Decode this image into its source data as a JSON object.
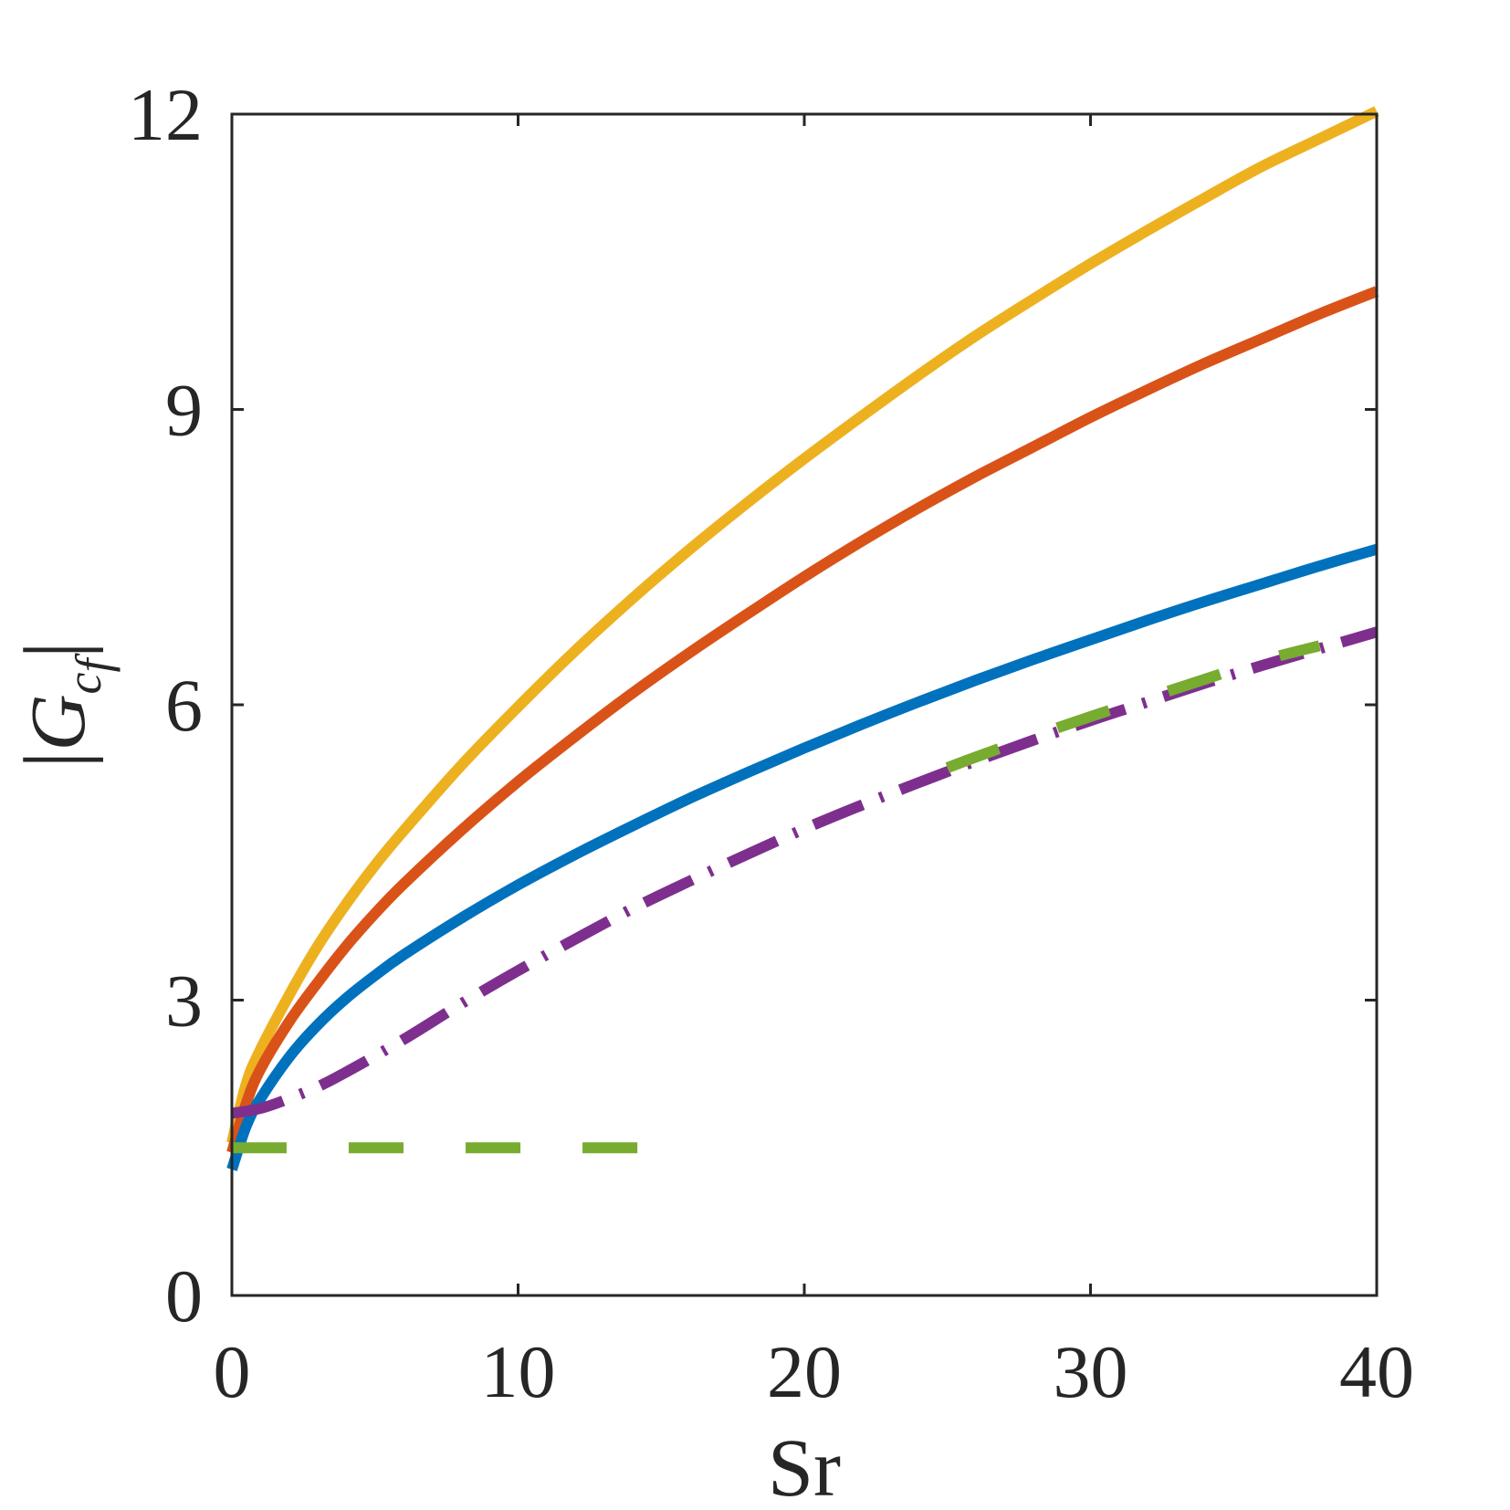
{
  "chart_data": {
    "type": "line",
    "title": "",
    "xlabel": "Sr",
    "ylabel": {
      "bar_left": "|",
      "main": "G",
      "subscript": "c",
      "subsub": "f",
      "bar_right": "|"
    },
    "xlim": [
      0,
      40
    ],
    "ylim": [
      0,
      12
    ],
    "xticks": [
      0,
      10,
      20,
      30,
      40
    ],
    "yticks": [
      0,
      3,
      6,
      9,
      12
    ],
    "xtick_labels": [
      "0",
      "10",
      "20",
      "30",
      "40"
    ],
    "ytick_labels": [
      "0",
      "3",
      "6",
      "9",
      "12"
    ],
    "grid": false,
    "legend": "none",
    "series": [
      {
        "color": "#EDB120",
        "style": "solid",
        "x": [
          0,
          0.5,
          1,
          2,
          3,
          4,
          5,
          6,
          8,
          10,
          12,
          14,
          16,
          18,
          20,
          22,
          24,
          26,
          28,
          30,
          32,
          34,
          36,
          38,
          40
        ],
        "y": [
          1.55,
          2.15,
          2.5,
          3.05,
          3.55,
          3.98,
          4.37,
          4.72,
          5.38,
          5.98,
          6.55,
          7.08,
          7.58,
          8.05,
          8.5,
          8.93,
          9.35,
          9.75,
          10.12,
          10.48,
          10.82,
          11.15,
          11.47,
          11.75,
          12.03
        ]
      },
      {
        "color": "#D95319",
        "style": "solid",
        "x": [
          0,
          0.5,
          1,
          2,
          3,
          4,
          5,
          6,
          8,
          10,
          12,
          14,
          16,
          18,
          20,
          22,
          24,
          26,
          28,
          30,
          32,
          34,
          36,
          38,
          40
        ],
        "y": [
          1.45,
          1.95,
          2.3,
          2.78,
          3.18,
          3.55,
          3.88,
          4.18,
          4.72,
          5.22,
          5.68,
          6.12,
          6.53,
          6.92,
          7.3,
          7.66,
          8.0,
          8.32,
          8.62,
          8.92,
          9.2,
          9.47,
          9.72,
          9.97,
          10.2
        ]
      },
      {
        "color": "#0072BD",
        "style": "solid",
        "x": [
          0,
          0.5,
          1,
          2,
          3,
          4,
          5,
          6,
          8,
          10,
          12,
          14,
          16,
          18,
          20,
          22,
          24,
          26,
          28,
          30,
          32,
          34,
          36,
          38,
          40
        ],
        "y": [
          1.28,
          1.72,
          2.0,
          2.42,
          2.75,
          3.02,
          3.25,
          3.46,
          3.83,
          4.17,
          4.48,
          4.77,
          5.05,
          5.31,
          5.56,
          5.8,
          6.03,
          6.25,
          6.46,
          6.66,
          6.86,
          7.05,
          7.23,
          7.41,
          7.58
        ]
      },
      {
        "color": "#7E2F8E",
        "style": "dashdot",
        "x": [
          0,
          1,
          2,
          3,
          4,
          6,
          8,
          10,
          12,
          14,
          16,
          18,
          20,
          22,
          24,
          26,
          28,
          30,
          32,
          34,
          36,
          38,
          40
        ],
        "y": [
          1.85,
          1.9,
          2.0,
          2.12,
          2.27,
          2.6,
          2.96,
          3.3,
          3.62,
          3.93,
          4.21,
          4.48,
          4.74,
          4.98,
          5.21,
          5.43,
          5.64,
          5.84,
          6.03,
          6.22,
          6.4,
          6.57,
          6.74
        ]
      },
      {
        "color": "#77AC30",
        "style": "dashed",
        "x": [
          0,
          14.3
        ],
        "y": [
          1.5,
          1.5
        ]
      },
      {
        "color": "#77AC30",
        "style": "dashed",
        "x": [
          25,
          26,
          28,
          30,
          32,
          34,
          36,
          38
        ],
        "y": [
          5.36,
          5.47,
          5.68,
          5.88,
          6.07,
          6.26,
          6.45,
          6.6
        ]
      }
    ]
  }
}
